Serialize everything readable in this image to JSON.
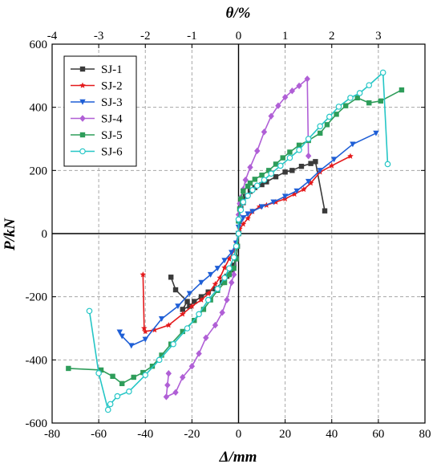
{
  "chart_data": {
    "type": "line",
    "xlabel": "Δ/mm",
    "ylabel": "P/kN",
    "x2label": "θ/%",
    "xlim": [
      -80,
      80
    ],
    "ylim": [
      -600,
      600
    ],
    "x2lim": [
      -4,
      4
    ],
    "xticks": [
      -80,
      -60,
      -40,
      -20,
      0,
      20,
      40,
      60,
      80
    ],
    "yticks": [
      -600,
      -400,
      -200,
      0,
      200,
      400,
      600
    ],
    "x2ticks": [
      -4,
      -3,
      -2,
      -1,
      0,
      1,
      2,
      3
    ],
    "grid": true,
    "legend_position": "top-left",
    "series": [
      {
        "name": "SJ-1",
        "color": "#3a3a3a",
        "marker": "square",
        "points": [
          [
            37,
            72
          ],
          [
            33,
            228
          ],
          [
            31,
            222
          ],
          [
            27,
            213
          ],
          [
            23,
            200
          ],
          [
            20,
            195
          ],
          [
            16,
            180
          ],
          [
            12,
            164
          ],
          [
            10,
            155
          ],
          [
            7,
            146
          ],
          [
            5,
            134
          ],
          [
            3,
            118
          ],
          [
            2,
            98
          ],
          [
            1,
            80
          ],
          [
            0,
            40
          ],
          [
            0,
            0
          ],
          [
            -0.5,
            -40
          ],
          [
            -1,
            -75
          ],
          [
            -2,
            -100
          ],
          [
            -3,
            -115
          ],
          [
            -5,
            -135
          ],
          [
            -7,
            -155
          ],
          [
            -10,
            -175
          ],
          [
            -13,
            -185
          ],
          [
            -16,
            -200
          ],
          [
            -19,
            -215
          ],
          [
            -21,
            -230
          ],
          [
            -24,
            -240
          ],
          [
            -22,
            -215
          ],
          [
            -27,
            -178
          ],
          [
            -29,
            -138
          ]
        ]
      },
      {
        "name": "SJ-2",
        "color": "#e41a1c",
        "marker": "star",
        "points": [
          [
            48,
            245
          ],
          [
            40,
            215
          ],
          [
            35,
            195
          ],
          [
            31,
            160
          ],
          [
            28,
            140
          ],
          [
            24,
            125
          ],
          [
            20,
            110
          ],
          [
            16,
            100
          ],
          [
            12,
            90
          ],
          [
            9,
            85
          ],
          [
            6,
            70
          ],
          [
            4,
            48
          ],
          [
            2,
            30
          ],
          [
            0.5,
            15
          ],
          [
            0,
            0
          ],
          [
            -1,
            -30
          ],
          [
            -2,
            -55
          ],
          [
            -4,
            -80
          ],
          [
            -6,
            -108
          ],
          [
            -8,
            -140
          ],
          [
            -10,
            -160
          ],
          [
            -13,
            -190
          ],
          [
            -16,
            -210
          ],
          [
            -20,
            -230
          ],
          [
            -24,
            -255
          ],
          [
            -30,
            -290
          ],
          [
            -36,
            -305
          ],
          [
            -40,
            -310
          ],
          [
            -40.5,
            -300
          ],
          [
            -41,
            -130
          ]
        ]
      },
      {
        "name": "SJ-3",
        "color": "#1f5fd6",
        "marker": "triangle-down",
        "points": [
          [
            59,
            318
          ],
          [
            49,
            283
          ],
          [
            41,
            235
          ],
          [
            35,
            200
          ],
          [
            30,
            165
          ],
          [
            25,
            135
          ],
          [
            20,
            118
          ],
          [
            15,
            100
          ],
          [
            10,
            85
          ],
          [
            6,
            70
          ],
          [
            4,
            62
          ],
          [
            2,
            50
          ],
          [
            1,
            38
          ],
          [
            0,
            20
          ],
          [
            0,
            0
          ],
          [
            -1,
            -30
          ],
          [
            -3,
            -60
          ],
          [
            -6,
            -85
          ],
          [
            -9,
            -110
          ],
          [
            -12,
            -130
          ],
          [
            -16,
            -155
          ],
          [
            -21,
            -190
          ],
          [
            -26,
            -230
          ],
          [
            -33,
            -270
          ],
          [
            -40,
            -335
          ],
          [
            -46,
            -355
          ],
          [
            -50,
            -325
          ],
          [
            -51,
            -312
          ]
        ]
      },
      {
        "name": "SJ-4",
        "color": "#b05fd6",
        "marker": "diamond",
        "points": [
          [
            30,
            246
          ],
          [
            29.5,
            490
          ],
          [
            26,
            468
          ],
          [
            23,
            452
          ],
          [
            20,
            432
          ],
          [
            17,
            405
          ],
          [
            14,
            372
          ],
          [
            11,
            322
          ],
          [
            8,
            262
          ],
          [
            5,
            210
          ],
          [
            3,
            170
          ],
          [
            2,
            140
          ],
          [
            1,
            115
          ],
          [
            0.5,
            95
          ],
          [
            0,
            60
          ],
          [
            0,
            0
          ],
          [
            -0.5,
            -40
          ],
          [
            -1,
            -80
          ],
          [
            -2,
            -130
          ],
          [
            -3,
            -155
          ],
          [
            -5,
            -210
          ],
          [
            -7,
            -250
          ],
          [
            -10,
            -290
          ],
          [
            -14,
            -330
          ],
          [
            -17,
            -380
          ],
          [
            -20,
            -420
          ],
          [
            -24,
            -455
          ],
          [
            -27,
            -503
          ],
          [
            -31,
            -517
          ],
          [
            -30.5,
            -480
          ],
          [
            -30,
            -443
          ]
        ]
      },
      {
        "name": "SJ-5",
        "color": "#2e9d5a",
        "marker": "square",
        "points": [
          [
            70,
            455
          ],
          [
            61,
            420
          ],
          [
            56,
            414
          ],
          [
            51,
            430
          ],
          [
            46,
            405
          ],
          [
            42,
            378
          ],
          [
            38,
            345
          ],
          [
            35,
            318
          ],
          [
            30,
            295
          ],
          [
            26,
            280
          ],
          [
            22,
            258
          ],
          [
            19,
            240
          ],
          [
            16,
            220
          ],
          [
            13,
            200
          ],
          [
            10,
            185
          ],
          [
            7,
            172
          ],
          [
            5,
            160
          ],
          [
            4,
            150
          ],
          [
            2,
            135
          ],
          [
            1,
            110
          ],
          [
            0.5,
            78
          ],
          [
            0,
            40
          ],
          [
            0,
            0
          ],
          [
            -0.5,
            -40
          ],
          [
            -1,
            -80
          ],
          [
            -2,
            -110
          ],
          [
            -4,
            -130
          ],
          [
            -6,
            -155
          ],
          [
            -9,
            -180
          ],
          [
            -12,
            -210
          ],
          [
            -15,
            -240
          ],
          [
            -19,
            -275
          ],
          [
            -24,
            -310
          ],
          [
            -29,
            -350
          ],
          [
            -33,
            -385
          ],
          [
            -37,
            -420
          ],
          [
            -41,
            -440
          ],
          [
            -45,
            -455
          ],
          [
            -50,
            -475
          ],
          [
            -54,
            -452
          ],
          [
            -59,
            -432
          ],
          [
            -73,
            -427
          ]
        ]
      },
      {
        "name": "SJ-6",
        "color": "#25c6c6",
        "marker": "circle",
        "points": [
          [
            64,
            220
          ],
          [
            62,
            510
          ],
          [
            56,
            470
          ],
          [
            52,
            445
          ],
          [
            48,
            430
          ],
          [
            43,
            402
          ],
          [
            39,
            370
          ],
          [
            35,
            340
          ],
          [
            30,
            300
          ],
          [
            26,
            265
          ],
          [
            22,
            240
          ],
          [
            18,
            215
          ],
          [
            14,
            190
          ],
          [
            11,
            170
          ],
          [
            8,
            152
          ],
          [
            6,
            138
          ],
          [
            4,
            120
          ],
          [
            2,
            100
          ],
          [
            1,
            75
          ],
          [
            0,
            45
          ],
          [
            0,
            0
          ],
          [
            -1,
            -40
          ],
          [
            -2,
            -75
          ],
          [
            -4,
            -110
          ],
          [
            -6,
            -140
          ],
          [
            -9,
            -175
          ],
          [
            -13,
            -210
          ],
          [
            -17,
            -255
          ],
          [
            -22,
            -300
          ],
          [
            -28,
            -350
          ],
          [
            -34,
            -400
          ],
          [
            -40,
            -448
          ],
          [
            -47,
            -500
          ],
          [
            -52,
            -515
          ],
          [
            -55,
            -540
          ],
          [
            -56,
            -558
          ],
          [
            -60,
            -442
          ],
          [
            -64,
            -245
          ]
        ]
      }
    ]
  }
}
